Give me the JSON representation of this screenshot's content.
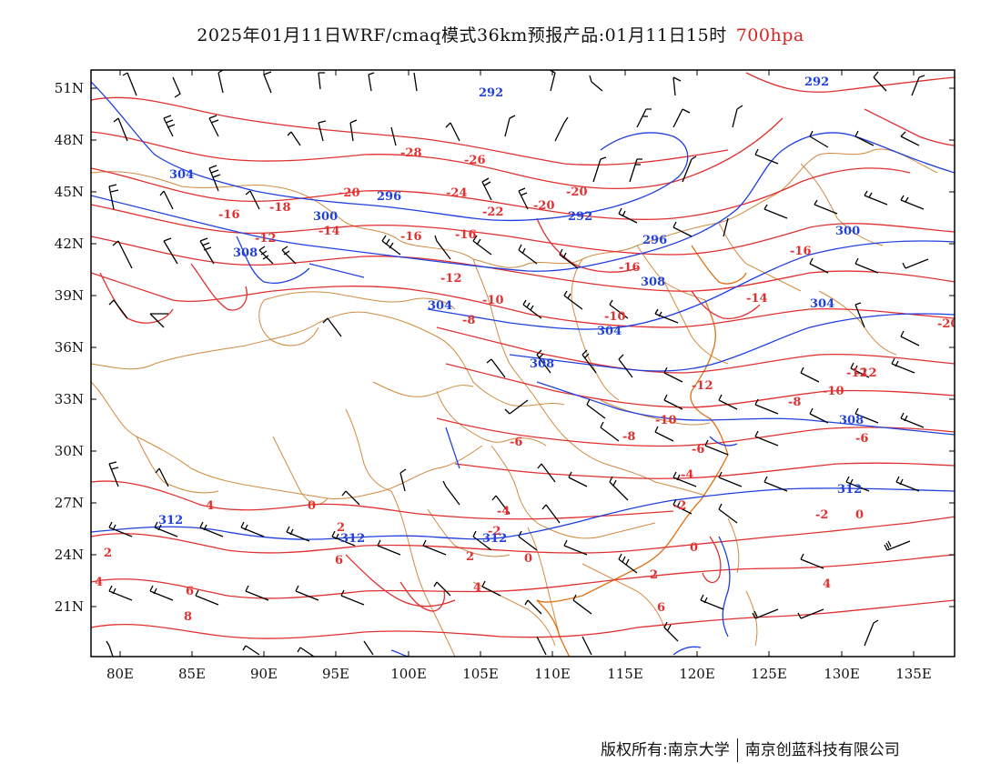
{
  "title": {
    "main": "2025年01月11日WRF/cmaq模式36km预报产品:01月11日15时",
    "level": "700hpa"
  },
  "map": {
    "lon_ticks": [
      "80E",
      "85E",
      "90E",
      "95E",
      "100E",
      "105E",
      "110E",
      "115E",
      "120E",
      "125E",
      "130E",
      "135E"
    ],
    "lat_ticks": [
      "51N",
      "48N",
      "45N",
      "42N",
      "39N",
      "36N",
      "33N",
      "30N",
      "27N",
      "24N",
      "21N"
    ],
    "colors": {
      "temperature_contour": "#e03030",
      "height_contour": "#2040e0",
      "boundary": "#d08a40",
      "coast": "#e07010",
      "wind_barb": "#000000"
    },
    "temperature_labels": [
      "-28",
      "-26",
      "-24",
      "-22",
      "-20",
      "-20",
      "-20",
      "-18",
      "-16",
      "-16",
      "-16",
      "-16",
      "-16",
      "-14",
      "-14",
      "-12",
      "-12",
      "-12",
      "-12",
      "-10",
      "-10",
      "-10",
      "-8",
      "-8",
      "-6",
      "-6",
      "-6",
      "-4",
      "-4",
      "-2",
      "-2",
      "-2",
      "0",
      "0",
      "0",
      "0",
      "2",
      "2",
      "2",
      "2",
      "4",
      "4",
      "4",
      "4",
      "6",
      "6",
      "6",
      "8",
      "-8",
      "-10",
      "-12",
      "-20"
    ],
    "height_labels": [
      "292",
      "292",
      "296",
      "300",
      "292",
      "296",
      "300",
      "304",
      "304",
      "304",
      "304",
      "308",
      "308",
      "308",
      "308",
      "312",
      "312",
      "312",
      "312"
    ]
  },
  "footer": {
    "left": "版权所有:南京大学",
    "right": "南京创蓝科技有限公司"
  }
}
